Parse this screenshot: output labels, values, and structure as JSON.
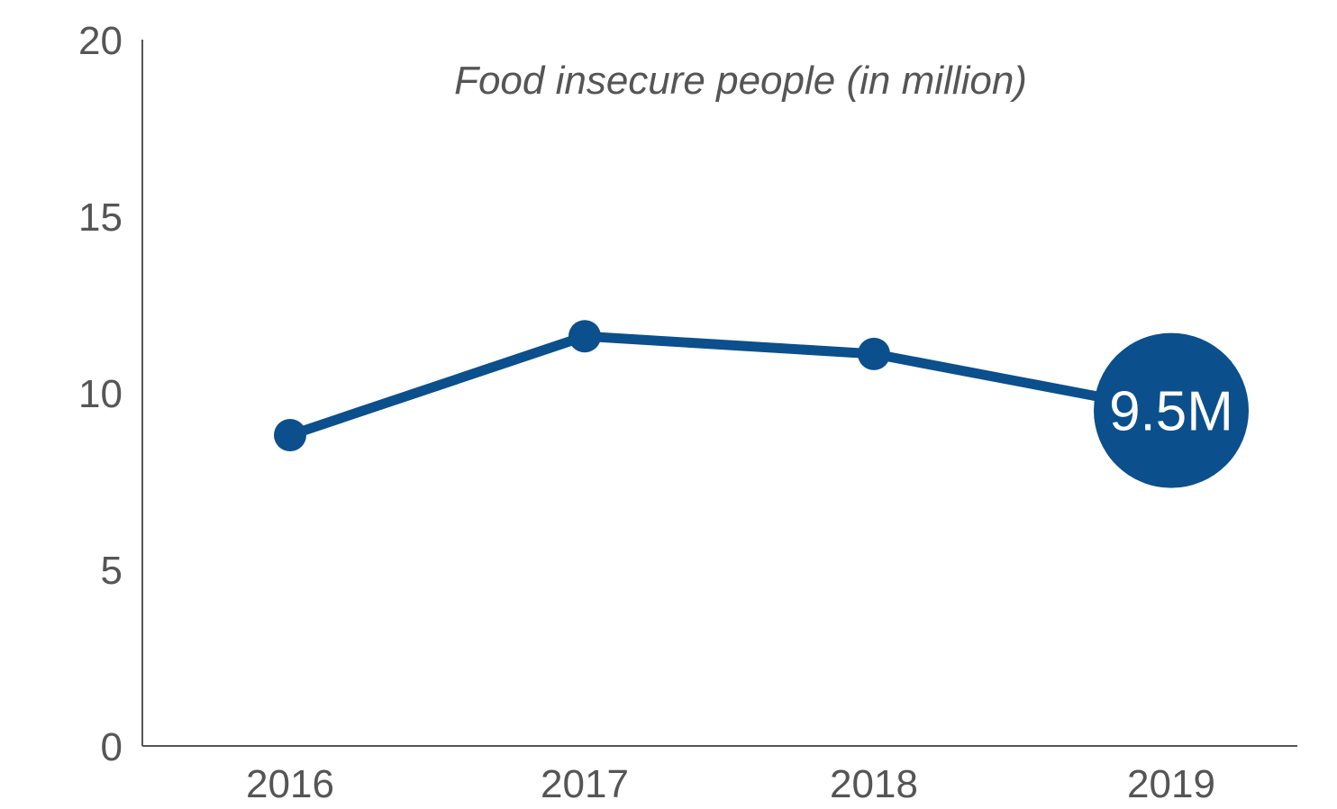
{
  "chart_data": {
    "type": "line",
    "title": "Food insecure people (in million)",
    "xlabel": "",
    "ylabel": "",
    "categories": [
      "2016",
      "2017",
      "2018",
      "2019"
    ],
    "series": [
      {
        "values": [
          8.8,
          11.6,
          11.1,
          9.5
        ]
      }
    ],
    "ylim": [
      0,
      20
    ],
    "yticks": [
      "0",
      "5",
      "10",
      "15",
      "20"
    ],
    "grid": false,
    "legend": "none",
    "callout": {
      "index": 3,
      "label": "9.5M"
    },
    "color": "#0b4f8c"
  }
}
